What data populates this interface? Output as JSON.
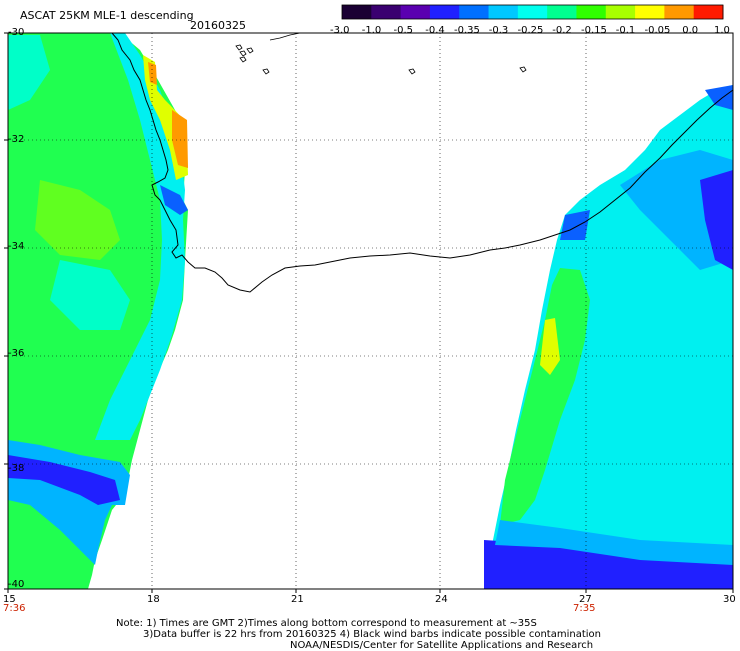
{
  "header": {
    "title": "ASCAT 25KM MLE-1 descending",
    "date": "20160325"
  },
  "colorbar": {
    "labels": [
      "-3.0",
      "-1.0",
      "-0.5",
      "-0.4",
      "-0.35",
      "-0.3",
      "-0.25",
      "-0.2",
      "-0.15",
      "-0.1",
      "-0.05",
      "0.0",
      "1.0"
    ],
    "colors": [
      "#1a0033",
      "#3a0070",
      "#5a00b0",
      "#2020ff",
      "#0070ff",
      "#00c8ff",
      "#00ffee",
      "#00ff90",
      "#30ff00",
      "#a8ff00",
      "#ffff00",
      "#ff9900",
      "#ff1a00"
    ]
  },
  "map": {
    "lat_labels": [
      "-30",
      "-32",
      "-34",
      "-36",
      "-38",
      "-40"
    ],
    "lon_labels": [
      "15",
      "18",
      "21",
      "24",
      "27",
      "30"
    ],
    "lat_range": [
      -40,
      -30
    ],
    "lon_range": [
      15,
      30
    ],
    "time_labels": [
      {
        "lon": 15,
        "text": "7:36"
      },
      {
        "lon": 27,
        "text": "7:35"
      }
    ]
  },
  "notes": {
    "line1": "Note: 1) Times are GMT 2)Times along bottom correspond to measurement at ~35S",
    "line2": "3)Data buffer is 22 hrs from 20160325 4) Black wind barbs indicate possible contamination",
    "line3": "NOAA/NESDIS/Center for Satellite Applications and Research"
  },
  "style": {
    "grid_color": "#000000",
    "coast_color": "#000000",
    "time_color": "#cc2200"
  }
}
